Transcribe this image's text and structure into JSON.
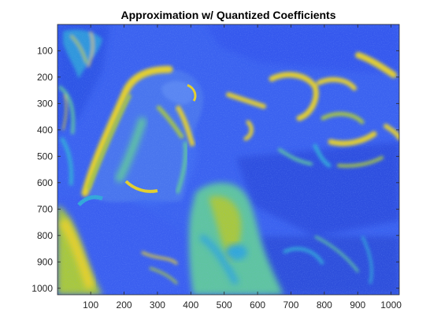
{
  "figure": {
    "title": "Approximation w/ Quantized Coefficients"
  },
  "image_plot": {
    "x_ticks": [
      "100",
      "200",
      "300",
      "400",
      "500",
      "600",
      "700",
      "800",
      "900",
      "1000"
    ],
    "y_ticks": [
      "100",
      "200",
      "300",
      "400",
      "500",
      "600",
      "700",
      "800",
      "900",
      "1000"
    ],
    "x_range": [
      0.5,
      1024.5
    ],
    "y_range": [
      0.5,
      1024.5
    ],
    "y_direction": "reverse",
    "colormap": "parula",
    "colors": {
      "background": "#3b62f0",
      "dark_blue": "#2c4bd8",
      "cyan": "#31a7d9",
      "green": "#5ec4a0",
      "yellow_green": "#a8c83c",
      "yellow": "#e6d02a"
    }
  }
}
